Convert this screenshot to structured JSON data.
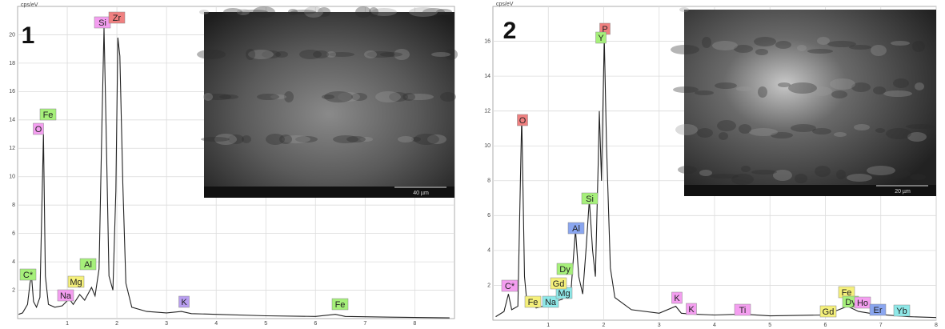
{
  "chart_data": [
    {
      "type": "line",
      "panel_label": "1",
      "y_label": "cps/eV",
      "scale_bar": "40 µm",
      "color": "#222222",
      "grid": true,
      "x": [
        0.02,
        0.1,
        0.2,
        0.25,
        0.28,
        0.32,
        0.38,
        0.45,
        0.52,
        0.56,
        0.62,
        0.75,
        0.9,
        1.04,
        1.12,
        1.25,
        1.35,
        1.49,
        1.56,
        1.64,
        1.7,
        1.74,
        1.78,
        1.84,
        1.92,
        1.98,
        2.02,
        2.06,
        2.12,
        2.18,
        2.3,
        2.6,
        3.0,
        3.3,
        3.5,
        4.0,
        5.0,
        6.0,
        6.4,
        6.6,
        7.5,
        8.7
      ],
      "values": [
        0.3,
        0.4,
        1.0,
        2.5,
        3.0,
        1.2,
        0.8,
        1.5,
        13.0,
        3.0,
        1.0,
        0.8,
        0.9,
        1.4,
        1.0,
        1.7,
        1.3,
        2.2,
        1.6,
        3.5,
        14,
        20.5,
        14,
        3.0,
        2.0,
        9,
        19.8,
        18.5,
        9.5,
        2.5,
        0.8,
        0.5,
        0.4,
        0.5,
        0.35,
        0.3,
        0.2,
        0.15,
        0.3,
        0.15,
        0.1,
        0.05
      ],
      "xlim": [
        0,
        8.8
      ],
      "ylim": [
        0,
        22
      ],
      "xticks": [
        1,
        2,
        3,
        4,
        5,
        6,
        7,
        8
      ],
      "yticks": [
        2,
        4,
        6,
        8,
        10,
        12,
        14,
        16,
        18,
        20
      ],
      "annotations": [
        {
          "text": "C*",
          "color": "#a6f07a"
        },
        {
          "text": "O",
          "color": "#f49ef0"
        },
        {
          "text": "Fe",
          "color": "#a6f07a"
        },
        {
          "text": "Na",
          "color": "#f49ef0"
        },
        {
          "text": "Mg",
          "color": "#f5f07a"
        },
        {
          "text": "Al",
          "color": "#a6f07a"
        },
        {
          "text": "Si",
          "color": "#f49ef0"
        },
        {
          "text": "Zr",
          "color": "#f08080"
        },
        {
          "text": "K",
          "color": "#b89ef0"
        },
        {
          "text": "Fe",
          "color": "#a6f07a"
        }
      ]
    },
    {
      "type": "line",
      "panel_label": "2",
      "y_label": "cps/eV",
      "scale_bar": "20 µm",
      "color": "#222222",
      "grid": true,
      "x": [
        0.05,
        0.2,
        0.28,
        0.34,
        0.45,
        0.52,
        0.57,
        0.62,
        0.7,
        0.78,
        0.9,
        1.04,
        1.15,
        1.25,
        1.32,
        1.4,
        1.49,
        1.55,
        1.62,
        1.68,
        1.74,
        1.8,
        1.85,
        1.9,
        1.92,
        1.96,
        2.01,
        2.05,
        2.12,
        2.2,
        2.5,
        3.0,
        3.3,
        3.4,
        3.6,
        4.0,
        4.5,
        5.0,
        6.0,
        6.4,
        6.6,
        6.9,
        7.5,
        8.0
      ],
      "values": [
        0.2,
        0.5,
        1.5,
        0.6,
        0.8,
        11.7,
        2.5,
        0.8,
        1.0,
        0.7,
        0.8,
        0.9,
        1.1,
        1.2,
        1.5,
        1.3,
        5.2,
        2.5,
        1.5,
        4,
        6.9,
        4,
        2.5,
        9,
        12,
        8,
        16.2,
        10,
        3,
        1.3,
        0.6,
        0.4,
        0.8,
        0.4,
        0.35,
        0.3,
        0.35,
        0.25,
        0.3,
        0.8,
        0.5,
        0.35,
        0.2,
        0.15
      ],
      "xlim": [
        0,
        8
      ],
      "ylim": [
        0,
        18
      ],
      "xticks": [
        1,
        2,
        3,
        4,
        5,
        6,
        7,
        8
      ],
      "yticks": [
        2,
        4,
        6,
        8,
        10,
        12,
        14,
        16
      ],
      "annotations": [
        {
          "text": "C*",
          "color": "#f49ef0"
        },
        {
          "text": "O",
          "color": "#f08080"
        },
        {
          "text": "Fe",
          "color": "#f5f07a"
        },
        {
          "text": "Na",
          "color": "#8ee8e8"
        },
        {
          "text": "Mg",
          "color": "#8ee8e8"
        },
        {
          "text": "Dy",
          "color": "#a6f07a"
        },
        {
          "text": "Gd",
          "color": "#f5f07a"
        },
        {
          "text": "Al",
          "color": "#8aa6f0"
        },
        {
          "text": "Si",
          "color": "#a6f07a"
        },
        {
          "text": "P",
          "color": "#f08080"
        },
        {
          "text": "Y",
          "color": "#a6f07a"
        },
        {
          "text": "K",
          "color": "#f49ef0"
        },
        {
          "text": "K",
          "color": "#f49ef0"
        },
        {
          "text": "Ti",
          "color": "#f49ef0"
        },
        {
          "text": "Gd",
          "color": "#f5f07a"
        },
        {
          "text": "Fe",
          "color": "#f5f07a"
        },
        {
          "text": "Dy",
          "color": "#a6f07a"
        },
        {
          "text": "Ho",
          "color": "#f49ef0"
        },
        {
          "text": "Er",
          "color": "#8aa6f0"
        },
        {
          "text": "Yb",
          "color": "#8ee8e8"
        }
      ]
    }
  ]
}
